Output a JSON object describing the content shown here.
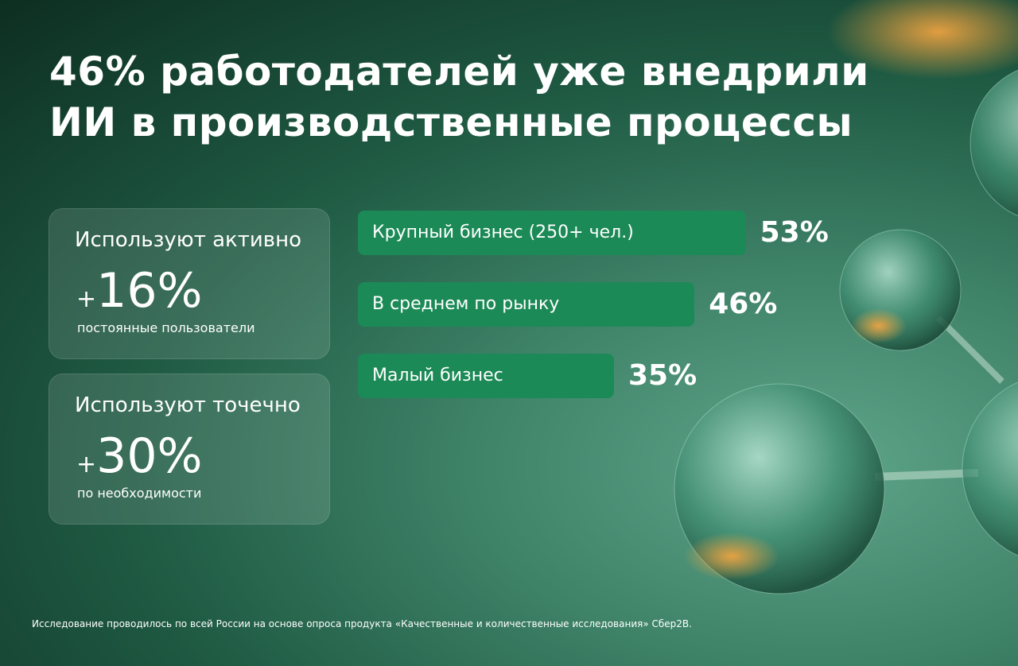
{
  "chart_data": {
    "type": "bar",
    "title": [
      "46% работодателей уже внедрили",
      "ИИ в производственные процессы"
    ],
    "cards": [
      {
        "heading": "Используют активно",
        "sign": "+",
        "value": "16%",
        "caption": "постоянные пользователи"
      },
      {
        "heading": "Используют точечно",
        "sign": "+",
        "value": "30%",
        "caption": "по необходимости"
      }
    ],
    "categories": [
      "Крупный бизнес (250+ чел.)",
      "В среднем по рынку",
      "Малый бизнес"
    ],
    "values": [
      53,
      46,
      35
    ],
    "value_labels": [
      "53%",
      "46%",
      "35%"
    ],
    "color": "#1c8a57",
    "footnote": "Исследование проводилось по всей России на основе опроса продукта «Качественные и количественные исследования» Сбер2В."
  }
}
